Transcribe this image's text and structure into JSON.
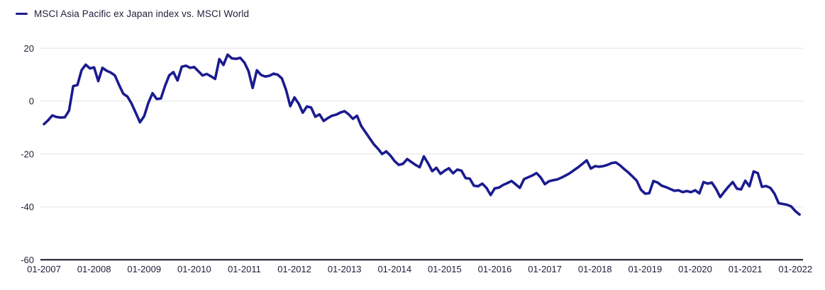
{
  "legend": {
    "label": "MSCI Asia Pacific ex Japan index vs. MSCI World",
    "swatch_color": "#1b1b8f"
  },
  "colors": {
    "line": "#1b1b8f",
    "text": "#1e1e3a",
    "gridline": "#e4e4e6",
    "axis_line": "#15152b",
    "background": "#ffffff"
  },
  "chart_data": {
    "type": "line",
    "title": "MSCI Asia Pacific ex Japan index vs. MSCI World",
    "grid": "horizontal",
    "legend_position": "top-left",
    "ylim": [
      -60,
      20
    ],
    "y_ticks": [
      20,
      0,
      -20,
      -40,
      -60
    ],
    "x_tick_labels": [
      "01-2007",
      "01-2008",
      "01-2009",
      "01-2010",
      "01-2011",
      "01-2012",
      "01-2013",
      "01-2014",
      "01-2015",
      "01-2016",
      "01-2017",
      "01-2018",
      "01-2019",
      "01-2020",
      "01-2021",
      "01-2022"
    ],
    "x_start_month": "01-2007",
    "x_end_month": "02-2022",
    "frequency": "monthly",
    "series": [
      {
        "name": "MSCI Asia Pacific ex Japan index vs. MSCI World",
        "color": "#1b1b8f",
        "values": [
          -8.7,
          -7.2,
          -5.4,
          -6.0,
          -6.2,
          -6.1,
          -3.6,
          5.7,
          6.1,
          11.7,
          13.8,
          12.4,
          12.8,
          7.6,
          12.6,
          11.5,
          10.8,
          9.7,
          6.1,
          2.8,
          1.7,
          -1.0,
          -4.5,
          -8.0,
          -5.7,
          -0.7,
          3.0,
          0.8,
          1.0,
          5.8,
          9.7,
          11.0,
          7.8,
          13.0,
          13.4,
          12.6,
          12.9,
          11.3,
          9.7,
          10.3,
          9.4,
          8.4,
          15.9,
          13.7,
          17.6,
          16.2,
          16.0,
          16.4,
          14.6,
          11.4,
          5.0,
          11.7,
          9.9,
          9.3,
          9.6,
          10.4,
          10.0,
          8.6,
          4.2,
          -1.9,
          1.4,
          -0.9,
          -4.4,
          -2.0,
          -2.4,
          -5.9,
          -5.0,
          -7.5,
          -6.4,
          -5.5,
          -5.1,
          -4.3,
          -3.8,
          -5.0,
          -6.7,
          -5.5,
          -9.4,
          -11.7,
          -14.0,
          -16.3,
          -18.0,
          -20.0,
          -19.0,
          -20.6,
          -22.7,
          -24.1,
          -23.7,
          -21.9,
          -23.0,
          -24.1,
          -25.0,
          -20.9,
          -23.5,
          -26.5,
          -25.2,
          -27.5,
          -26.3,
          -25.4,
          -27.3,
          -25.9,
          -26.3,
          -29.1,
          -29.3,
          -32.0,
          -32.2,
          -31.2,
          -32.8,
          -35.5,
          -33.0,
          -32.7,
          -31.7,
          -31.0,
          -30.2,
          -31.5,
          -32.8,
          -29.5,
          -28.8,
          -28.1,
          -27.2,
          -28.9,
          -31.4,
          -30.3,
          -29.9,
          -29.6,
          -28.9,
          -28.1,
          -27.2,
          -26.1,
          -25.0,
          -23.7,
          -22.4,
          -25.5,
          -24.6,
          -24.8,
          -24.6,
          -24.1,
          -23.4,
          -23.2,
          -24.3,
          -25.7,
          -27.0,
          -28.5,
          -30.1,
          -33.5,
          -35.0,
          -34.8,
          -30.2,
          -30.8,
          -32.0,
          -32.5,
          -33.2,
          -33.9,
          -33.7,
          -34.4,
          -34.0,
          -34.4,
          -33.7,
          -34.9,
          -30.6,
          -31.2,
          -30.8,
          -33.2,
          -36.3,
          -34.2,
          -32.3,
          -30.6,
          -33.1,
          -33.4,
          -30.1,
          -32.2,
          -26.6,
          -27.2,
          -32.4,
          -32.1,
          -32.8,
          -35.0,
          -38.6,
          -38.9,
          -39.2,
          -39.8,
          -41.6,
          -42.9
        ]
      }
    ]
  }
}
